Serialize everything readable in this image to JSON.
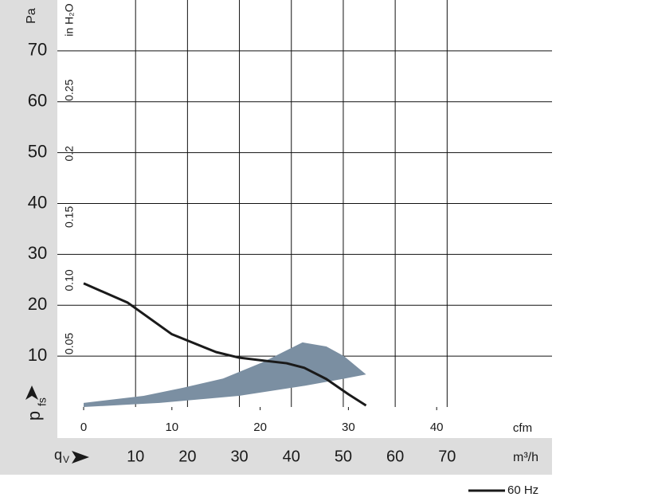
{
  "chart_data": {
    "type": "line",
    "ylabel": "p",
    "ylabel_sub": "fs",
    "yunit": "Pa",
    "y2unit": "in H₂O",
    "xunit": "cfm",
    "x2unit": "m³/h",
    "x2label": "q",
    "x2label_sub": "V",
    "xlim": [
      0,
      53.07
    ],
    "xticks": [
      0,
      10,
      20,
      30,
      40
    ],
    "x2lim": [
      0,
      90.2
    ],
    "x2ticks": [
      10,
      20,
      30,
      40,
      50,
      60,
      70
    ],
    "ylim": [
      0,
      80
    ],
    "yticks": [
      10,
      20,
      30,
      40,
      50,
      60,
      70
    ],
    "y2lim": [
      0,
      0.3212
    ],
    "y2ticks": [
      0.05,
      {
        "value": 0.1,
        "label": "0.10"
      },
      0.15,
      0.2,
      0.25
    ],
    "grid": true,
    "region": {
      "color": "#7b8fa2",
      "x": [
        0,
        6.8,
        11.3,
        15.8,
        20.3,
        24.8,
        27.5,
        29.5,
        32,
        29.3,
        24.8,
        17.6,
        8.6,
        0
      ],
      "y": [
        0.8,
        2.2,
        3.8,
        5.6,
        8.8,
        12.7,
        11.9,
        10,
        6.4,
        5.5,
        4.1,
        2.2,
        0.8,
        0
      ]
    },
    "series": [
      {
        "name": "60 Hz",
        "color": "#1a1a1a",
        "x": [
          0,
          5,
          10,
          15,
          17.6,
          20,
          23,
          25,
          27.5,
          30,
          32
        ],
        "values": [
          24.3,
          20.5,
          14.3,
          10.8,
          9.7,
          9.2,
          8.6,
          7.7,
          5.5,
          2.5,
          0.3
        ]
      }
    ]
  }
}
